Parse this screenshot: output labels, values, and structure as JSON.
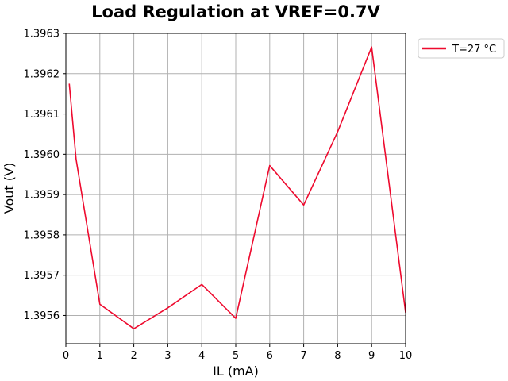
{
  "chart_data": {
    "type": "line",
    "title": "Load Regulation at VREF=0.7V",
    "xlabel": "IL (mA)",
    "ylabel": "Vout (V)",
    "xlim": [
      0,
      10
    ],
    "ylim": [
      1.39553,
      1.3963
    ],
    "xticks": [
      "0",
      "1",
      "2",
      "3",
      "4",
      "5",
      "6",
      "7",
      "8",
      "9",
      "10"
    ],
    "yticks": [
      "1.3956",
      "1.3957",
      "1.3958",
      "1.3959",
      "1.3960",
      "1.3961",
      "1.3962",
      "1.3963"
    ],
    "grid": true,
    "legend_position": "outside-top-right",
    "series": [
      {
        "name": "T=27 °C",
        "color": "#ee0a2e",
        "x": [
          0.1,
          0.3,
          1,
          2,
          3,
          4,
          5,
          6,
          7,
          8,
          9,
          10
        ],
        "y": [
          1.396175,
          1.395988,
          1.395628,
          1.395567,
          1.395619,
          1.395677,
          1.395593,
          1.395972,
          1.395874,
          1.396056,
          1.396266,
          1.395607
        ]
      }
    ]
  }
}
